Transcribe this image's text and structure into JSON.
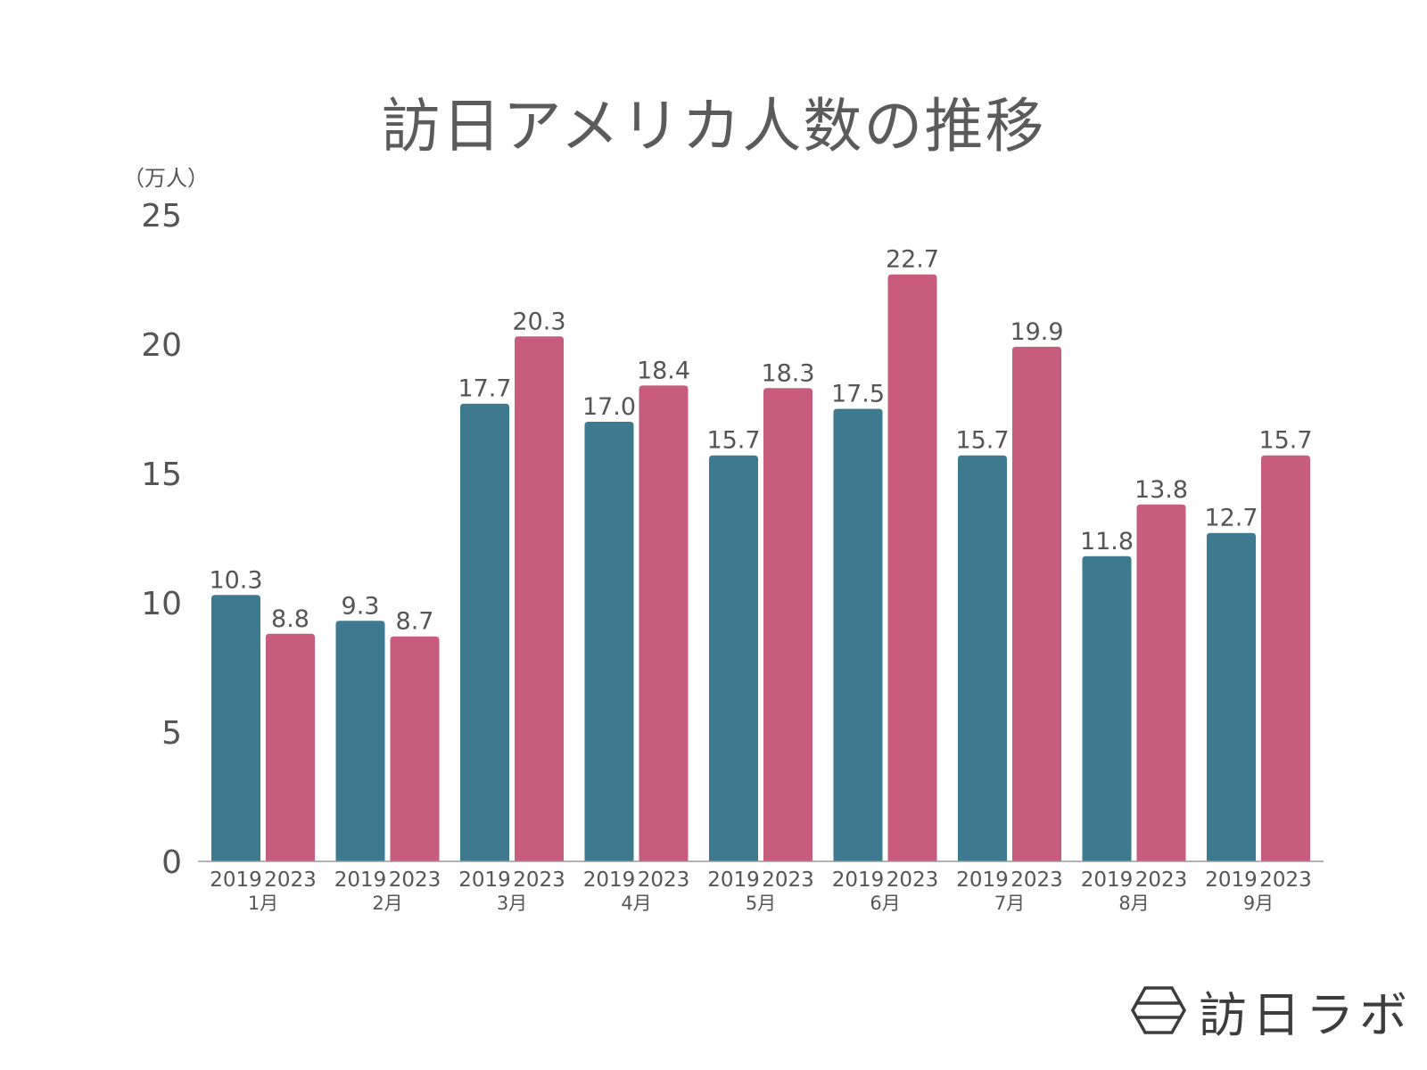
{
  "chart_data": {
    "type": "bar",
    "title": "訪日アメリカ人数の推移",
    "unit_label": "（万人）",
    "ylim": [
      0,
      25
    ],
    "yticks": [
      0,
      5,
      10,
      15,
      20,
      25
    ],
    "categories": [
      "1月",
      "2月",
      "3月",
      "4月",
      "5月",
      "6月",
      "7月",
      "8月",
      "9月"
    ],
    "series": [
      {
        "name": "2019",
        "color": "#3e7a8f",
        "values": [
          10.3,
          9.3,
          17.7,
          17.0,
          15.7,
          17.5,
          15.7,
          11.8,
          12.7
        ],
        "labels": [
          "10.3",
          "9.3",
          "17.7",
          "17.0",
          "15.7",
          "17.5",
          "15.7",
          "11.8",
          "12.7"
        ]
      },
      {
        "name": "2023",
        "color": "#c75c7e",
        "values": [
          8.8,
          8.7,
          20.3,
          18.4,
          18.3,
          22.7,
          19.9,
          13.8,
          15.7
        ],
        "labels": [
          "8.8",
          "8.7",
          "20.3",
          "18.4",
          "18.3",
          "22.7",
          "19.9",
          "13.8",
          "15.7"
        ]
      }
    ]
  },
  "logo": {
    "text": "訪日ラボ",
    "icon": "hexagon-logo-icon"
  }
}
